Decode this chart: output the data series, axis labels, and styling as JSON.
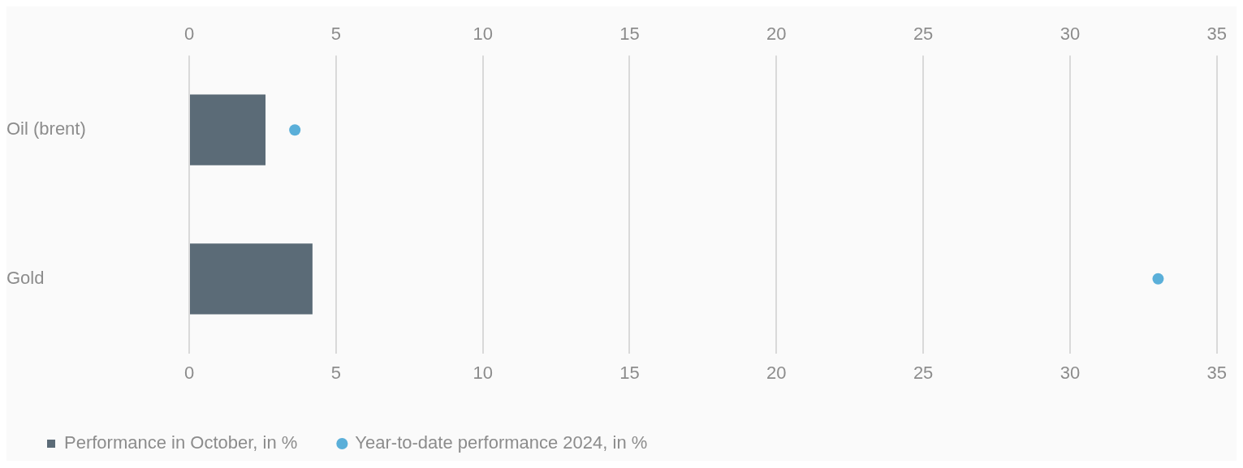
{
  "chart_data": {
    "type": "bar",
    "orientation": "horizontal",
    "categories": [
      "Oil (brent)",
      "Gold"
    ],
    "series": [
      {
        "name": "Performance in October, in %",
        "color": "#5b6b77",
        "values": [
          2.6,
          4.2
        ]
      },
      {
        "name": "Year-to-date performance 2024, in %",
        "type": "scatter",
        "color": "#5aafd9",
        "values": [
          3.6,
          33.0
        ],
        "marker": "circle"
      }
    ],
    "xlim": [
      0,
      35
    ],
    "xticks": [
      0,
      5,
      10,
      15,
      20,
      25,
      30,
      35
    ],
    "x2lim": [
      0,
      35
    ],
    "x2ticks": [
      0,
      5,
      10,
      15,
      20,
      25,
      30,
      35
    ],
    "grid": "x",
    "legend": "bottom left"
  }
}
